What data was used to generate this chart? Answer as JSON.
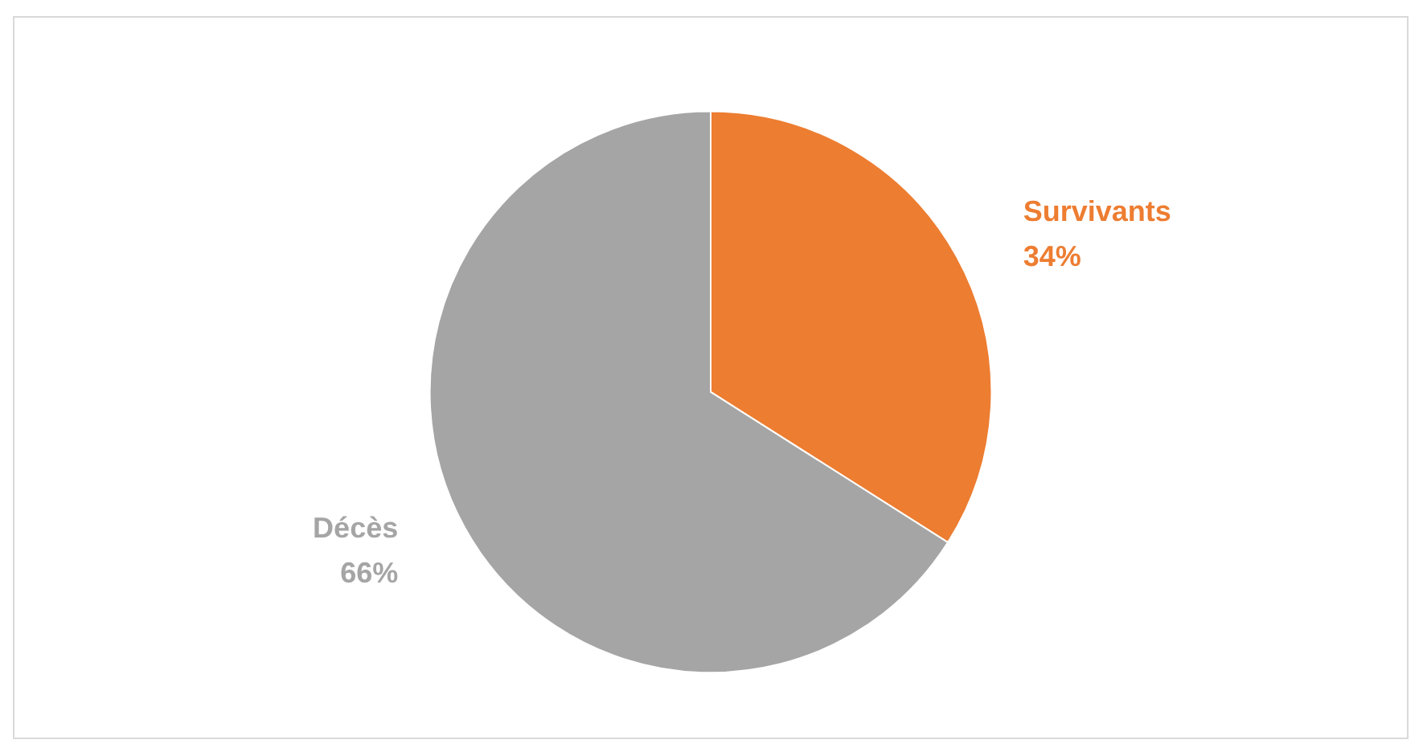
{
  "chart_data": {
    "type": "pie",
    "categories": [
      "Survivants",
      "Décès"
    ],
    "values": [
      34,
      66
    ],
    "colors": [
      "#ed7d31",
      "#a5a5a5"
    ],
    "value_labels": [
      "34%",
      "66%"
    ],
    "legend": false
  }
}
